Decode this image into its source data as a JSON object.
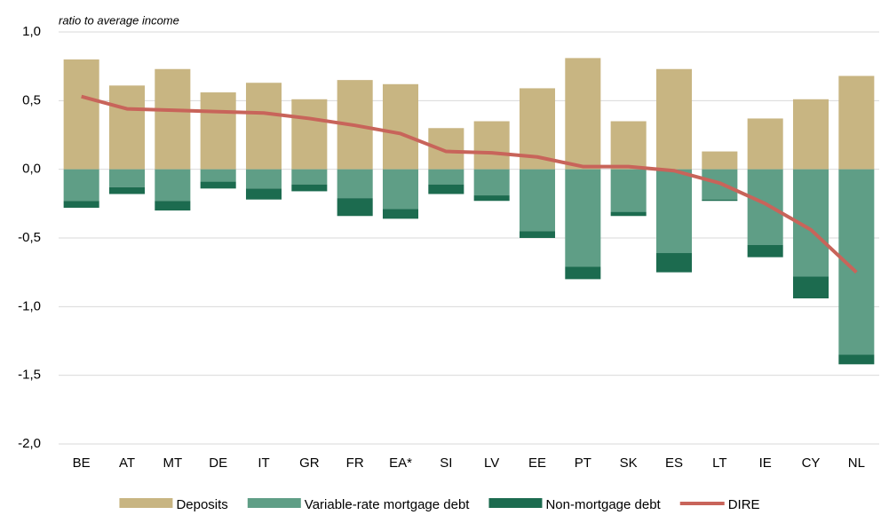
{
  "chart_data": {
    "type": "bar",
    "stacked": true,
    "y_axis_label": "ratio to average income",
    "categories": [
      "BE",
      "AT",
      "MT",
      "DE",
      "IT",
      "GR",
      "FR",
      "EA*",
      "SI",
      "LV",
      "EE",
      "PT",
      "SK",
      "ES",
      "LT",
      "IE",
      "CY",
      "NL"
    ],
    "series": [
      {
        "name": "Deposits",
        "color": "#c8b582",
        "values": [
          0.8,
          0.61,
          0.73,
          0.56,
          0.63,
          0.51,
          0.65,
          0.62,
          0.3,
          0.35,
          0.59,
          0.81,
          0.35,
          0.73,
          0.13,
          0.37,
          0.51,
          0.68
        ]
      },
      {
        "name": "Variable-rate mortgage debt",
        "color": "#5f9e86",
        "values": [
          -0.23,
          -0.13,
          -0.23,
          -0.09,
          -0.14,
          -0.11,
          -0.21,
          -0.29,
          -0.11,
          -0.19,
          -0.45,
          -0.71,
          -0.31,
          -0.61,
          -0.22,
          -0.55,
          -0.78,
          -1.35
        ]
      },
      {
        "name": "Non-mortgage debt",
        "color": "#1c6b4f",
        "values": [
          -0.05,
          -0.05,
          -0.07,
          -0.05,
          -0.08,
          -0.05,
          -0.13,
          -0.07,
          -0.07,
          -0.04,
          -0.05,
          -0.09,
          -0.03,
          -0.14,
          -0.01,
          -0.09,
          -0.16,
          -0.07
        ]
      },
      {
        "name": "DIRE",
        "type": "line",
        "color": "#c8645a",
        "values": [
          0.53,
          0.44,
          0.43,
          0.42,
          0.41,
          0.37,
          0.32,
          0.26,
          0.13,
          0.12,
          0.09,
          0.02,
          0.02,
          -0.01,
          -0.1,
          -0.25,
          -0.44,
          -0.75
        ]
      }
    ],
    "ylim": [
      -2.0,
      1.0
    ],
    "yticks": [
      {
        "value": -2.0,
        "label": "-2,0"
      },
      {
        "value": -1.5,
        "label": "-1,5"
      },
      {
        "value": -1.0,
        "label": "-1,0"
      },
      {
        "value": -0.5,
        "label": "-0,5"
      },
      {
        "value": 0.0,
        "label": "0,0"
      },
      {
        "value": 0.5,
        "label": "0,5"
      },
      {
        "value": 1.0,
        "label": "1,0"
      }
    ],
    "grid": true
  }
}
